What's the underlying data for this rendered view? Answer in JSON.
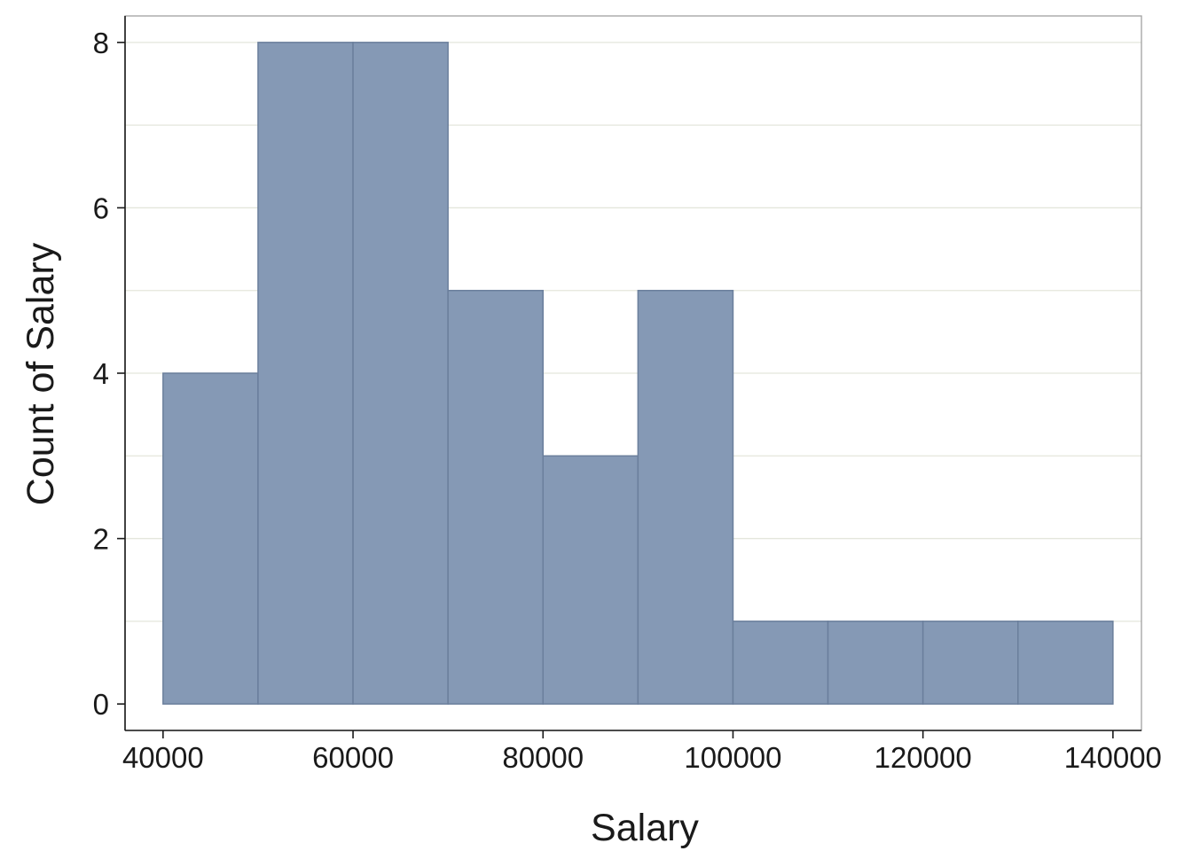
{
  "chart_data": {
    "type": "bar",
    "subtype": "histogram",
    "title": "",
    "xlabel": "Salary",
    "ylabel": "Count of Salary",
    "bins": [
      {
        "start": 40000,
        "end": 50000,
        "count": 4
      },
      {
        "start": 50000,
        "end": 60000,
        "count": 8
      },
      {
        "start": 60000,
        "end": 70000,
        "count": 8
      },
      {
        "start": 70000,
        "end": 80000,
        "count": 5
      },
      {
        "start": 80000,
        "end": 90000,
        "count": 3
      },
      {
        "start": 90000,
        "end": 100000,
        "count": 5
      },
      {
        "start": 100000,
        "end": 110000,
        "count": 1
      },
      {
        "start": 110000,
        "end": 120000,
        "count": 1
      },
      {
        "start": 120000,
        "end": 130000,
        "count": 1
      },
      {
        "start": 130000,
        "end": 140000,
        "count": 1
      }
    ],
    "xticks": [
      40000,
      60000,
      80000,
      100000,
      120000,
      140000
    ],
    "yticks": [
      0,
      2,
      4,
      6,
      8
    ],
    "xlim": [
      36000,
      143000
    ],
    "ylim": [
      -0.32,
      8.32
    ],
    "grid": "horizontal",
    "colors": {
      "bar_fill": "#8599b5",
      "bar_stroke": "#6b7f9c",
      "grid": "#e4e6dc",
      "axis": "#1a1a1a",
      "frame": "#a0a0a0"
    }
  }
}
